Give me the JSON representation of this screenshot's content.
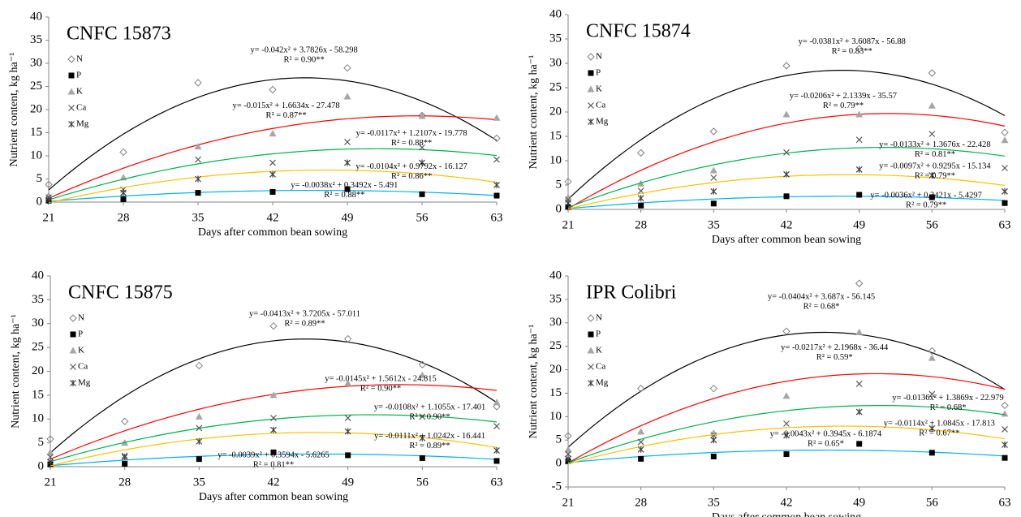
{
  "chart_data": [
    {
      "type": "scatter",
      "title": "CNFC 15873",
      "x_label": "Days after common bean sowing",
      "y_label": "Nutrient content, kg ha⁻¹",
      "x": [
        21,
        28,
        35,
        42,
        49,
        56,
        63
      ],
      "xlim": [
        21,
        63
      ],
      "xticks": [
        21,
        28,
        35,
        42,
        49,
        56,
        63
      ],
      "ylim": [
        0,
        40
      ],
      "yticks": [
        0,
        5,
        10,
        15,
        20,
        25,
        30,
        35,
        40
      ],
      "series": [
        {
          "name": "N",
          "marker": "diamond",
          "color": "#808080",
          "line_color": "#000000",
          "values": [
            3.8,
            10.8,
            25.8,
            24.3,
            29,
            18.7,
            13.8
          ],
          "fit": {
            "a": -0.042,
            "b": 3.7826,
            "c": -58.298
          },
          "equation": "y= -0.042x² + 3.7826x - 58.298",
          "r2": "R² = 0.90**"
        },
        {
          "name": "P",
          "marker": "square",
          "color": "#000000",
          "line_color": "#00b0f0",
          "values": [
            0.3,
            0.6,
            2,
            2.2,
            2.8,
            1.7,
            1.4
          ],
          "fit": {
            "a": -0.0038,
            "b": 0.3492,
            "c": -5.491
          },
          "equation": "y= -0.0038x² + 0.3492x - 5.491",
          "r2": "R² = 0.88**"
        },
        {
          "name": "K",
          "marker": "triangle",
          "color": "#a6a6a6",
          "line_color": "#ff0000",
          "values": [
            1.5,
            5.3,
            12,
            14.8,
            22.8,
            18.6,
            18.2
          ],
          "fit": {
            "a": -0.015,
            "b": 1.6634,
            "c": -27.478
          },
          "equation": "y= -0.015x² + 1.6634x - 27.478",
          "r2": "R² = 0.87**"
        },
        {
          "name": "Ca",
          "marker": "cross",
          "color": "#595959",
          "line_color": "#00b050",
          "values": [
            1,
            2.7,
            9.2,
            8.5,
            13,
            11.8,
            9.2
          ],
          "fit": {
            "a": -0.0117,
            "b": 1.2107,
            "c": -19.778
          },
          "equation": "y= -0.0117x² + 1.2107x - 19.778",
          "r2": "R² = 0.88**"
        },
        {
          "name": "Mg",
          "marker": "star",
          "color": "#404040",
          "line_color": "#ffc000",
          "values": [
            0.5,
            2,
            5,
            6,
            8.5,
            8.5,
            3.7
          ],
          "fit": {
            "a": -0.0104,
            "b": 0.9792,
            "c": -16.127
          },
          "equation": "y= -0.0104x² + 0.9792x - 16.127",
          "r2": "R² = 0.86**"
        }
      ]
    },
    {
      "type": "scatter",
      "title": "CNFC 15874",
      "x_label": "Days after common bean sowing",
      "y_label": "Nutrient content, kg ha⁻¹",
      "x": [
        21,
        28,
        35,
        42,
        49,
        56,
        63
      ],
      "xlim": [
        21,
        63
      ],
      "xticks": [
        21,
        28,
        35,
        42,
        49,
        56,
        63
      ],
      "ylim": [
        0,
        40
      ],
      "yticks": [
        0,
        5,
        10,
        15,
        20,
        25,
        30,
        35,
        40
      ],
      "series": [
        {
          "name": "N",
          "marker": "diamond",
          "color": "#808080",
          "line_color": "#000000",
          "values": [
            5.7,
            11.6,
            16,
            29.5,
            33,
            28,
            15.8
          ],
          "fit": {
            "a": -0.0381,
            "b": 3.6087,
            "c": -56.88
          },
          "equation": "y= -0.0381x² + 3.6087x - 56.88",
          "r2": "R² = 0.83**"
        },
        {
          "name": "P",
          "marker": "square",
          "color": "#000000",
          "line_color": "#00b0f0",
          "values": [
            0.5,
            0.8,
            1.2,
            2.7,
            3,
            2.5,
            1.3
          ],
          "fit": {
            "a": -0.0036,
            "b": 0.3421,
            "c": -5.4297
          },
          "equation": "y= -0.0036x² + 0.3421x - 5.4297",
          "r2": "R² = 0.79**"
        },
        {
          "name": "K",
          "marker": "triangle",
          "color": "#a6a6a6",
          "line_color": "#ff0000",
          "values": [
            2.5,
            5.3,
            8,
            19.5,
            19.5,
            21.3,
            14.2
          ],
          "fit": {
            "a": -0.0206,
            "b": 2.1339,
            "c": -35.57
          },
          "equation": "y= -0.0206x² + 2.1339x - 35.57",
          "r2": "R² = 0.79**"
        },
        {
          "name": "Ca",
          "marker": "cross",
          "color": "#595959",
          "line_color": "#00b050",
          "values": [
            2,
            3.8,
            6.5,
            11.7,
            14.3,
            15.5,
            8.5
          ],
          "fit": {
            "a": -0.0133,
            "b": 1.3676,
            "c": -22.428
          },
          "equation": "y= -0.0133x² + 1.3676x - 22.428",
          "r2": "R² = 0.81**"
        },
        {
          "name": "Mg",
          "marker": "star",
          "color": "#404040",
          "line_color": "#ffc000",
          "values": [
            1.3,
            2.3,
            3.7,
            7.2,
            8.2,
            7,
            3.7
          ],
          "fit": {
            "a": -0.0097,
            "b": 0.9295,
            "c": -15.134
          },
          "equation": "y= -0.0097x² + 0.9295x - 15.134",
          "r2": "R² = 0.79**"
        }
      ]
    },
    {
      "type": "scatter",
      "title": "CNFC 15875",
      "x_label": "Days after common bean sowing",
      "y_label": "Nutrient content, kg ha⁻¹",
      "x": [
        21,
        28,
        35,
        42,
        49,
        56,
        63
      ],
      "xlim": [
        21,
        63
      ],
      "xticks": [
        21,
        28,
        35,
        42,
        49,
        56,
        63
      ],
      "ylim": [
        0,
        40
      ],
      "yticks": [
        0,
        5,
        10,
        15,
        20,
        25,
        30,
        35,
        40
      ],
      "series": [
        {
          "name": "N",
          "marker": "diamond",
          "color": "#808080",
          "line_color": "#000000",
          "values": [
            5.8,
            9.5,
            21.2,
            29.5,
            26.8,
            21.4,
            12.6
          ],
          "fit": {
            "a": -0.0413,
            "b": 3.7205,
            "c": -57.011
          },
          "equation": "y= -0.0413x² + 3.7205x - 57.011",
          "r2": "R² = 0.89**"
        },
        {
          "name": "P",
          "marker": "square",
          "color": "#000000",
          "line_color": "#00b0f0",
          "values": [
            0.5,
            0.6,
            1.6,
            3,
            2.4,
            1.8,
            1.2
          ],
          "fit": {
            "a": -0.0039,
            "b": 0.3594,
            "c": -5.6265
          },
          "equation": "y= -0.0039x² + 0.3594x - 5.6265",
          "r2": "R² = 0.81**"
        },
        {
          "name": "K",
          "marker": "triangle",
          "color": "#a6a6a6",
          "line_color": "#ff0000",
          "values": [
            3,
            5,
            10.5,
            15,
            17.5,
            19.2,
            13.5
          ],
          "fit": {
            "a": -0.0145,
            "b": 1.5612,
            "c": -24.815
          },
          "equation": "y= -0.0145x² + 1.5612x - 24.815",
          "r2": "R² = 0.90**"
        },
        {
          "name": "Ca",
          "marker": "cross",
          "color": "#595959",
          "line_color": "#00b050",
          "values": [
            2,
            2.3,
            8.1,
            10.2,
            10.2,
            10.5,
            8.5
          ],
          "fit": {
            "a": -0.0108,
            "b": 1.1055,
            "c": -17.401
          },
          "equation": "y= -0.0108x² + 1.1055x - 17.401",
          "r2": "R² = 0.90**"
        },
        {
          "name": "Mg",
          "marker": "star",
          "color": "#404040",
          "line_color": "#ffc000",
          "values": [
            1,
            2,
            5.3,
            7.7,
            7.4,
            6,
            3.4
          ],
          "fit": {
            "a": -0.0111,
            "b": 1.0242,
            "c": -16.441
          },
          "equation": "y= -0.0111x² + 1.0242x - 16.441",
          "r2": "R² = 0.89**"
        }
      ]
    },
    {
      "type": "scatter",
      "title": "IPR Colibri",
      "x_label": "Days after common bean sowing",
      "y_label": "Nutrient content, kg ha⁻¹",
      "x": [
        21,
        28,
        35,
        42,
        49,
        56,
        63
      ],
      "xlim": [
        21,
        63
      ],
      "xticks": [
        21,
        28,
        35,
        42,
        49,
        56,
        63
      ],
      "ylim": [
        -5,
        40
      ],
      "yticks": [
        -5,
        0,
        5,
        10,
        15,
        20,
        25,
        30,
        35,
        40
      ],
      "series": [
        {
          "name": "N",
          "marker": "diamond",
          "color": "#808080",
          "line_color": "#000000",
          "values": [
            5.9,
            16,
            16,
            28.2,
            38.4,
            24,
            12.4
          ],
          "fit": {
            "a": -0.0404,
            "b": 3.687,
            "c": -56.145
          },
          "equation": "y= -0.0404x² + 3.687x - 56.145",
          "r2": "R² = 0.68*"
        },
        {
          "name": "P",
          "marker": "square",
          "color": "#000000",
          "line_color": "#00b0f0",
          "values": [
            0.5,
            1,
            1.5,
            2,
            4.2,
            2.3,
            1.2
          ],
          "fit": {
            "a": -0.0043,
            "b": 0.3945,
            "c": -6.1874
          },
          "equation": "y= -0.0043x² + 0.3945x - 6.1874",
          "r2": "R² = 0.65*"
        },
        {
          "name": "K",
          "marker": "triangle",
          "color": "#a6a6a6",
          "line_color": "#ff0000",
          "values": [
            3,
            6.8,
            6.5,
            14.4,
            28,
            22.5,
            10.6
          ],
          "fit": {
            "a": -0.0217,
            "b": 2.1968,
            "c": -36.44
          },
          "equation": "y= -0.0217x² + 2.1968x - 36.44",
          "r2": "R² = 0.59*"
        },
        {
          "name": "Ca",
          "marker": "cross",
          "color": "#595959",
          "line_color": "#00b050",
          "values": [
            2,
            4.6,
            6,
            8.5,
            17,
            14.8,
            7.3
          ],
          "fit": {
            "a": -0.0136,
            "b": 1.3869,
            "c": -22.979
          },
          "equation": "y= -0.0136x² + 1.3869x - 22.979",
          "r2": "R² = 0.68*"
        },
        {
          "name": "Mg",
          "marker": "star",
          "color": "#404040",
          "line_color": "#ffc000",
          "values": [
            1,
            3,
            5,
            6,
            11,
            7.5,
            4
          ],
          "fit": {
            "a": -0.0114,
            "b": 1.0845,
            "c": -17.813
          },
          "equation": "y= -0.0114x² + 1.0845x - 17.813",
          "r2": "R² = 0.67**"
        }
      ]
    }
  ]
}
